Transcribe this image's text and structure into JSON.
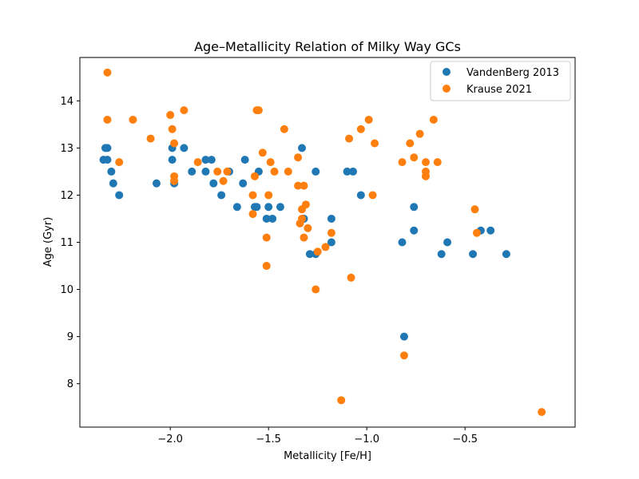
{
  "chart_data": {
    "type": "scatter",
    "title": "Age–Metallicity Relation of Milky Way GCs",
    "xlabel": "Metallicity [Fe/H]",
    "ylabel": "Age (Gyr)",
    "xlim": [
      -2.46,
      0.06
    ],
    "ylim": [
      7.08,
      14.92
    ],
    "xticks": [
      -2.0,
      -1.5,
      -1.0,
      -0.5
    ],
    "xtick_labels": [
      "−2.0",
      "−1.5",
      "−1.0",
      "−0.5"
    ],
    "yticks": [
      8,
      9,
      10,
      11,
      12,
      13,
      14
    ],
    "ytick_labels": [
      "8",
      "9",
      "10",
      "11",
      "12",
      "13",
      "14"
    ],
    "grid": false,
    "legend_position": "top-right",
    "series": [
      {
        "name": "VandenBerg 2013",
        "color": "#1f77b4",
        "points": [
          [
            -2.34,
            12.75
          ],
          [
            -2.33,
            13.0
          ],
          [
            -2.32,
            12.75
          ],
          [
            -2.32,
            13.0
          ],
          [
            -2.3,
            12.5
          ],
          [
            -2.29,
            12.25
          ],
          [
            -2.26,
            12.0
          ],
          [
            -2.07,
            12.25
          ],
          [
            -1.99,
            13.0
          ],
          [
            -1.99,
            12.75
          ],
          [
            -1.98,
            12.25
          ],
          [
            -1.93,
            13.0
          ],
          [
            -1.89,
            12.5
          ],
          [
            -1.82,
            12.75
          ],
          [
            -1.82,
            12.5
          ],
          [
            -1.79,
            12.75
          ],
          [
            -1.78,
            12.25
          ],
          [
            -1.74,
            12.0
          ],
          [
            -1.7,
            12.5
          ],
          [
            -1.66,
            11.75
          ],
          [
            -1.63,
            12.25
          ],
          [
            -1.62,
            12.75
          ],
          [
            -1.57,
            11.75
          ],
          [
            -1.56,
            11.75
          ],
          [
            -1.55,
            12.5
          ],
          [
            -1.51,
            11.5
          ],
          [
            -1.5,
            11.75
          ],
          [
            -1.48,
            11.5
          ],
          [
            -1.44,
            11.75
          ],
          [
            -1.33,
            13.0
          ],
          [
            -1.32,
            11.5
          ],
          [
            -1.29,
            10.75
          ],
          [
            -1.26,
            12.5
          ],
          [
            -1.26,
            10.75
          ],
          [
            -1.18,
            11.5
          ],
          [
            -1.18,
            11.0
          ],
          [
            -1.1,
            12.5
          ],
          [
            -1.07,
            12.5
          ],
          [
            -1.03,
            12.0
          ],
          [
            -0.82,
            11.0
          ],
          [
            -0.81,
            9.0
          ],
          [
            -0.76,
            11.75
          ],
          [
            -0.76,
            11.25
          ],
          [
            -0.62,
            10.75
          ],
          [
            -0.59,
            11.0
          ],
          [
            -0.46,
            10.75
          ],
          [
            -0.42,
            11.25
          ],
          [
            -0.37,
            11.25
          ],
          [
            -0.29,
            10.75
          ]
        ]
      },
      {
        "name": "Krause 2021",
        "color": "#ff7f0e",
        "points": [
          [
            -2.32,
            14.6
          ],
          [
            -2.32,
            13.6
          ],
          [
            -2.26,
            12.7
          ],
          [
            -2.19,
            13.6
          ],
          [
            -2.1,
            13.2
          ],
          [
            -2.0,
            13.7
          ],
          [
            -1.99,
            13.4
          ],
          [
            -1.98,
            13.1
          ],
          [
            -1.98,
            12.4
          ],
          [
            -1.98,
            12.3
          ],
          [
            -1.93,
            13.8
          ],
          [
            -1.86,
            12.7
          ],
          [
            -1.76,
            12.5
          ],
          [
            -1.73,
            12.3
          ],
          [
            -1.71,
            12.5
          ],
          [
            -1.58,
            12.0
          ],
          [
            -1.58,
            11.6
          ],
          [
            -1.57,
            12.4
          ],
          [
            -1.56,
            13.8
          ],
          [
            -1.55,
            13.8
          ],
          [
            -1.53,
            12.9
          ],
          [
            -1.51,
            11.1
          ],
          [
            -1.51,
            10.5
          ],
          [
            -1.5,
            12.0
          ],
          [
            -1.49,
            12.7
          ],
          [
            -1.47,
            12.5
          ],
          [
            -1.42,
            13.4
          ],
          [
            -1.4,
            12.5
          ],
          [
            -1.35,
            12.8
          ],
          [
            -1.35,
            12.2
          ],
          [
            -1.34,
            11.4
          ],
          [
            -1.33,
            11.5
          ],
          [
            -1.33,
            11.7
          ],
          [
            -1.32,
            12.2
          ],
          [
            -1.31,
            11.8
          ],
          [
            -1.32,
            11.1
          ],
          [
            -1.3,
            11.3
          ],
          [
            -1.26,
            10.0
          ],
          [
            -1.25,
            10.8
          ],
          [
            -1.21,
            10.9
          ],
          [
            -1.18,
            11.2
          ],
          [
            -1.13,
            7.65
          ],
          [
            -1.09,
            13.2
          ],
          [
            -1.08,
            10.25
          ],
          [
            -1.03,
            13.4
          ],
          [
            -0.99,
            13.6
          ],
          [
            -0.97,
            12.0
          ],
          [
            -0.96,
            13.1
          ],
          [
            -0.82,
            12.7
          ],
          [
            -0.81,
            8.6
          ],
          [
            -0.78,
            13.1
          ],
          [
            -0.76,
            12.8
          ],
          [
            -0.73,
            13.3
          ],
          [
            -0.7,
            12.5
          ],
          [
            -0.7,
            12.4
          ],
          [
            -0.7,
            12.7
          ],
          [
            -0.66,
            13.6
          ],
          [
            -0.64,
            12.7
          ],
          [
            -0.45,
            11.7
          ],
          [
            -0.44,
            11.2
          ],
          [
            -0.11,
            7.4
          ]
        ]
      }
    ]
  }
}
